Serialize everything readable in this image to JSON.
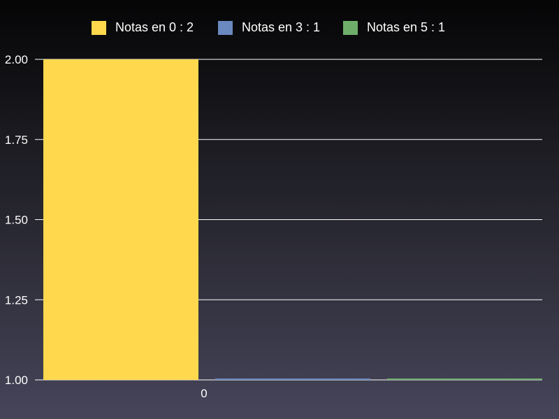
{
  "chart_data": {
    "type": "bar",
    "categories": [
      "0"
    ],
    "series": [
      {
        "name": "Notas en 0 : 2",
        "values": [
          2
        ],
        "color": "#ffd84d"
      },
      {
        "name": "Notas en 3 : 1",
        "values": [
          1
        ],
        "color": "#6a89bf"
      },
      {
        "name": "Notas en 5 : 1",
        "values": [
          1
        ],
        "color": "#6fae6a"
      }
    ],
    "ylim": [
      1.0,
      2.0
    ],
    "yticks": [
      "1.00",
      "1.25",
      "1.50",
      "1.75",
      "2.00"
    ],
    "grid": true,
    "legend_position": "top"
  }
}
